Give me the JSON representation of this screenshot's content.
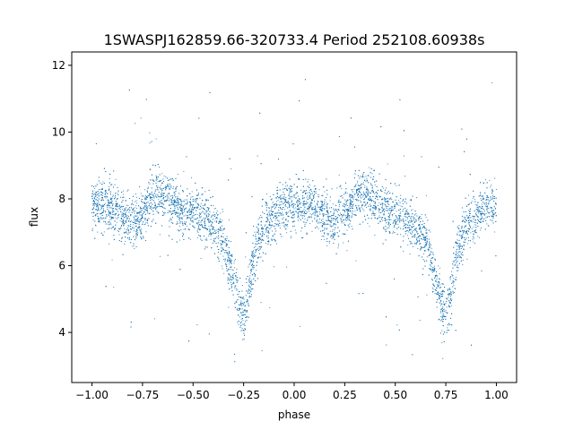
{
  "chart_data": {
    "type": "scatter",
    "title": "1SWASPJ162859.66-320733.4 Period 252108.60938s",
    "xlabel": "phase",
    "ylabel": "flux",
    "xlim": [
      -1.1,
      1.1
    ],
    "ylim": [
      2.5,
      12.4
    ],
    "x_ticks": [
      -1.0,
      -0.75,
      -0.5,
      -0.25,
      0.0,
      0.25,
      0.5,
      0.75,
      1.0
    ],
    "x_tick_labels": [
      "−1.00",
      "−0.75",
      "−0.50",
      "−0.25",
      "0.00",
      "0.25",
      "0.50",
      "0.75",
      "1.00"
    ],
    "y_ticks": [
      4,
      6,
      8,
      10,
      12
    ],
    "y_tick_labels": [
      "4",
      "6",
      "8",
      "10",
      "12"
    ],
    "grid": false,
    "point_color": "#1f77b4",
    "series": [
      {
        "phase_range": [
          -1.0,
          1.0
        ],
        "n_points": 9000,
        "approx_mean_flux_curve": [
          [
            -1.0,
            7.8
          ],
          [
            -0.95,
            7.8
          ],
          [
            -0.9,
            7.7
          ],
          [
            -0.85,
            7.5
          ],
          [
            -0.8,
            7.2
          ],
          [
            -0.75,
            7.6
          ],
          [
            -0.7,
            8.1
          ],
          [
            -0.65,
            8.2
          ],
          [
            -0.6,
            7.9
          ],
          [
            -0.55,
            7.6
          ],
          [
            -0.5,
            7.6
          ],
          [
            -0.45,
            7.4
          ],
          [
            -0.4,
            7.1
          ],
          [
            -0.35,
            6.8
          ],
          [
            -0.3,
            5.6
          ],
          [
            -0.27,
            4.7
          ],
          [
            -0.25,
            4.5
          ],
          [
            -0.23,
            5.0
          ],
          [
            -0.2,
            6.3
          ],
          [
            -0.15,
            7.1
          ],
          [
            -0.1,
            7.5
          ],
          [
            -0.05,
            7.8
          ],
          [
            0.0,
            7.8
          ],
          [
            0.05,
            7.8
          ],
          [
            0.1,
            7.7
          ],
          [
            0.15,
            7.5
          ],
          [
            0.2,
            7.2
          ],
          [
            0.25,
            7.6
          ],
          [
            0.3,
            8.1
          ],
          [
            0.35,
            8.2
          ],
          [
            0.4,
            7.9
          ],
          [
            0.45,
            7.6
          ],
          [
            0.5,
            7.6
          ],
          [
            0.55,
            7.4
          ],
          [
            0.6,
            7.1
          ],
          [
            0.65,
            6.8
          ],
          [
            0.7,
            5.6
          ],
          [
            0.73,
            4.7
          ],
          [
            0.75,
            4.5
          ],
          [
            0.77,
            5.0
          ],
          [
            0.8,
            6.3
          ],
          [
            0.85,
            7.1
          ],
          [
            0.9,
            7.5
          ],
          [
            0.95,
            7.8
          ],
          [
            1.0,
            7.8
          ]
        ]
      }
    ]
  }
}
